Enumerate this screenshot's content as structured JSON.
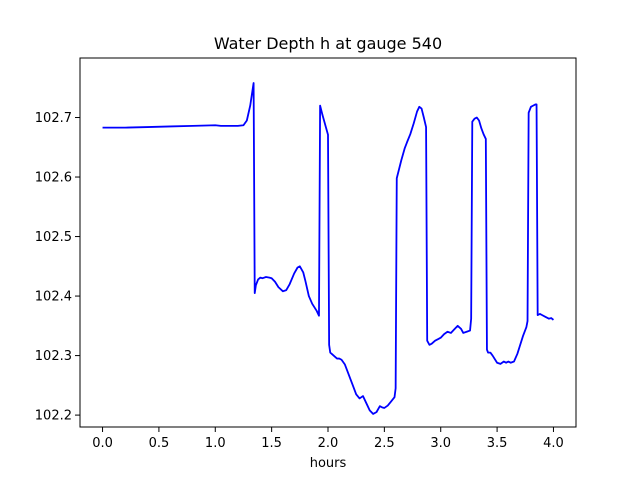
{
  "chart_data": {
    "type": "line",
    "title": "Water Depth h at gauge 540",
    "xlabel": "hours",
    "ylabel": "",
    "xlim": [
      -0.2,
      4.2
    ],
    "ylim": [
      102.18,
      102.8
    ],
    "xticks": [
      0.0,
      0.5,
      1.0,
      1.5,
      2.0,
      2.5,
      3.0,
      3.5,
      4.0
    ],
    "xtick_labels": [
      "0.0",
      "0.5",
      "1.0",
      "1.5",
      "2.0",
      "2.5",
      "3.0",
      "3.5",
      "4.0"
    ],
    "yticks": [
      102.2,
      102.3,
      102.4,
      102.5,
      102.6,
      102.7
    ],
    "ytick_labels": [
      "102.2",
      "102.3",
      "102.4",
      "102.5",
      "102.6",
      "102.7"
    ],
    "grid": false,
    "series": [
      {
        "color": "#0000ff",
        "x": [
          0.0,
          0.2,
          0.4,
          0.6,
          0.8,
          1.0,
          1.05,
          1.1,
          1.2,
          1.25,
          1.28,
          1.31,
          1.34,
          1.35,
          1.36,
          1.38,
          1.4,
          1.42,
          1.45,
          1.48,
          1.5,
          1.53,
          1.56,
          1.6,
          1.63,
          1.66,
          1.7,
          1.73,
          1.75,
          1.78,
          1.8,
          1.83,
          1.86,
          1.9,
          1.92,
          1.93,
          1.95,
          2.0,
          2.01,
          2.02,
          2.05,
          2.08,
          2.1,
          2.12,
          2.15,
          2.18,
          2.22,
          2.25,
          2.28,
          2.31,
          2.34,
          2.37,
          2.4,
          2.43,
          2.46,
          2.48,
          2.5,
          2.53,
          2.56,
          2.59,
          2.6,
          2.61,
          2.65,
          2.68,
          2.7,
          2.73,
          2.76,
          2.79,
          2.81,
          2.83,
          2.85,
          2.87,
          2.88,
          2.9,
          2.92,
          2.95,
          2.98,
          3.0,
          3.03,
          3.06,
          3.09,
          3.12,
          3.15,
          3.18,
          3.2,
          3.23,
          3.26,
          3.27,
          3.28,
          3.3,
          3.32,
          3.34,
          3.36,
          3.38,
          3.4,
          3.41,
          3.42,
          3.44,
          3.46,
          3.5,
          3.53,
          3.56,
          3.58,
          3.6,
          3.62,
          3.65,
          3.68,
          3.7,
          3.73,
          3.76,
          3.77,
          3.78,
          3.8,
          3.82,
          3.84,
          3.85,
          3.86,
          3.88,
          3.9,
          3.93,
          3.96,
          3.98,
          4.0
        ],
        "y": [
          102.683,
          102.683,
          102.684,
          102.685,
          102.686,
          102.687,
          102.686,
          102.686,
          102.686,
          102.687,
          102.695,
          102.72,
          102.758,
          102.405,
          102.418,
          102.428,
          102.431,
          102.43,
          102.432,
          102.431,
          102.43,
          102.424,
          102.415,
          102.408,
          102.41,
          102.42,
          102.438,
          102.448,
          102.45,
          102.44,
          102.425,
          102.4,
          102.387,
          102.375,
          102.367,
          102.72,
          102.705,
          102.671,
          102.318,
          102.305,
          102.3,
          102.295,
          102.295,
          102.293,
          102.285,
          102.27,
          102.25,
          102.235,
          102.228,
          102.232,
          102.22,
          102.208,
          102.202,
          102.205,
          102.215,
          102.213,
          102.212,
          102.216,
          102.223,
          102.23,
          102.245,
          102.598,
          102.628,
          102.648,
          102.658,
          102.672,
          102.69,
          102.71,
          102.718,
          102.715,
          102.7,
          102.684,
          102.325,
          102.318,
          102.32,
          102.325,
          102.328,
          102.33,
          102.336,
          102.34,
          102.338,
          102.344,
          102.35,
          102.345,
          102.338,
          102.34,
          102.342,
          102.362,
          102.693,
          102.698,
          102.7,
          102.695,
          102.682,
          102.672,
          102.664,
          102.31,
          102.305,
          102.305,
          102.3,
          102.288,
          102.286,
          102.29,
          102.288,
          102.29,
          102.288,
          102.29,
          102.303,
          102.315,
          102.333,
          102.348,
          102.358,
          102.708,
          102.718,
          102.72,
          102.722,
          102.722,
          102.368,
          102.37,
          102.368,
          102.365,
          102.362,
          102.363,
          102.36
        ]
      }
    ]
  }
}
